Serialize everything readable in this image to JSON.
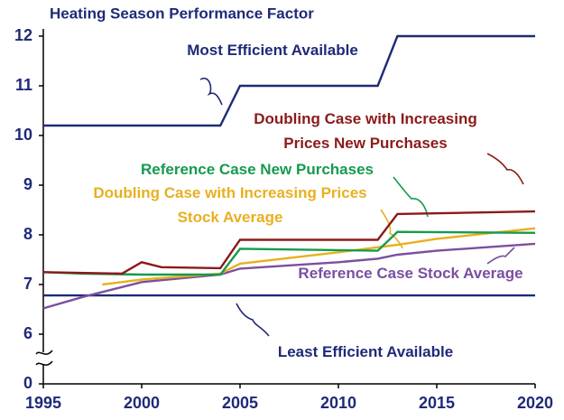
{
  "chart_data": {
    "type": "line",
    "title": "Heating Season Performance Factor",
    "xlim": [
      1995,
      2020
    ],
    "xticks": [
      1995,
      2000,
      2005,
      2010,
      2015,
      2020
    ],
    "ylim": [
      0,
      12
    ],
    "yticks": [
      0,
      6,
      7,
      8,
      9,
      10,
      11,
      12
    ],
    "y_axis_break": true,
    "series": [
      {
        "name": "Most Efficient Available",
        "color": "#1f2a78",
        "x": [
          1995,
          2004,
          2005,
          2012,
          2013,
          2020
        ],
        "values": [
          10.2,
          10.2,
          11,
          11,
          12,
          12
        ]
      },
      {
        "name": "Least Efficient Available",
        "color": "#1f2a78",
        "x": [
          1995,
          2020
        ],
        "values": [
          6.78,
          6.78
        ]
      },
      {
        "name": "Reference Case Stock Average",
        "color": "#7a4fa0",
        "x": [
          1995,
          1997,
          2000,
          2004,
          2005,
          2010,
          2012,
          2013,
          2015,
          2020
        ],
        "values": [
          6.52,
          6.75,
          7.05,
          7.2,
          7.32,
          7.45,
          7.52,
          7.6,
          7.68,
          7.82
        ]
      },
      {
        "name": "Doubling Case with Increasing Prices Stock Average",
        "color": "#e8b020",
        "x": [
          1998,
          2000,
          2004,
          2005,
          2010,
          2013,
          2015,
          2020
        ],
        "values": [
          7.0,
          7.1,
          7.22,
          7.42,
          7.65,
          7.8,
          7.92,
          8.13
        ]
      },
      {
        "name": "Reference Case New Purchases",
        "color": "#169a4e",
        "x": [
          1995,
          1997,
          2000,
          2004,
          2005,
          2012,
          2013,
          2020
        ],
        "values": [
          7.25,
          7.22,
          7.2,
          7.2,
          7.72,
          7.68,
          8.06,
          8.04
        ]
      },
      {
        "name": "Doubling Case with Increasing Prices New Purchases",
        "color": "#8b1a1a",
        "x": [
          1995,
          1999,
          2000,
          2001,
          2004,
          2005,
          2012,
          2013,
          2020
        ],
        "values": [
          7.25,
          7.22,
          7.45,
          7.35,
          7.33,
          7.9,
          7.9,
          8.42,
          8.47
        ]
      }
    ]
  }
}
